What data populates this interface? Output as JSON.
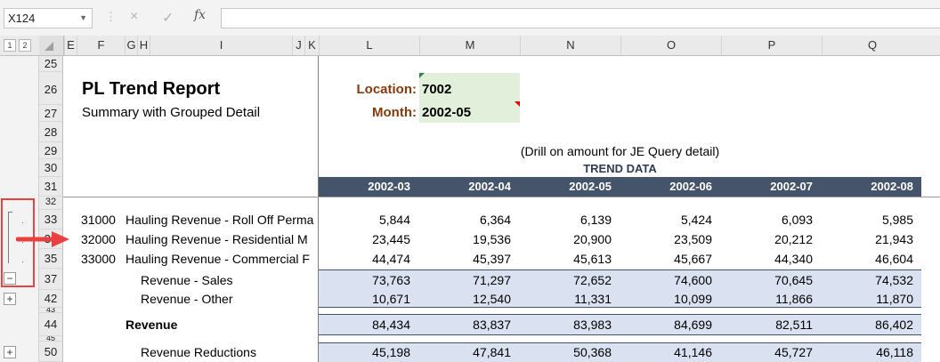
{
  "formula_bar": {
    "name_box": "X124",
    "cancel_icon": "×",
    "enter_icon": "✓",
    "fx_label": "fx",
    "formula": ""
  },
  "outline_levels": [
    "1",
    "2"
  ],
  "columns": [
    "E",
    "F",
    "G",
    "H",
    "I",
    "J",
    "K",
    "L",
    "M",
    "N",
    "O",
    "P",
    "Q"
  ],
  "rows": [
    "25",
    "26",
    "27",
    "28",
    "29",
    "30",
    "31",
    "32",
    "33",
    "34",
    "35",
    "37",
    "42",
    "43",
    "44",
    "45",
    "50"
  ],
  "title": "PL Trend Report",
  "subtitle": "Summary with Grouped Detail",
  "location_label": "Location:",
  "location_value": "7002",
  "month_label": "Month:",
  "month_value": "2002-05",
  "drill_note": "(Drill on amount for JE Query detail)",
  "trend_label": "TREND DATA",
  "periods": [
    "2002-03",
    "2002-04",
    "2002-05",
    "2002-06",
    "2002-07",
    "2002-08"
  ],
  "detail_rows": [
    {
      "code": "31000",
      "name": "Hauling Revenue - Roll Off Perma",
      "values": [
        "5,844",
        "6,364",
        "6,139",
        "5,424",
        "6,093",
        "5,985"
      ]
    },
    {
      "code": "32000",
      "name": "Hauling Revenue - Residential M",
      "values": [
        "23,445",
        "19,536",
        "20,900",
        "23,509",
        "20,212",
        "21,943"
      ]
    },
    {
      "code": "33000",
      "name": "Hauling Revenue - Commercial F",
      "values": [
        "44,474",
        "45,397",
        "45,613",
        "45,667",
        "44,340",
        "46,604"
      ]
    }
  ],
  "summary_rows": [
    {
      "name": "Revenue - Sales",
      "values": [
        "73,763",
        "71,297",
        "72,652",
        "74,600",
        "70,645",
        "74,532"
      ]
    },
    {
      "name": "Revenue - Other",
      "values": [
        "10,671",
        "12,540",
        "11,331",
        "10,099",
        "11,866",
        "11,870"
      ]
    },
    {
      "name": "Revenue",
      "values": [
        "84,434",
        "83,837",
        "83,983",
        "84,699",
        "82,511",
        "86,402"
      ]
    },
    {
      "name": "Revenue Reductions",
      "values": [
        "45,198",
        "47,841",
        "50,368",
        "41,146",
        "45,727",
        "46,118"
      ]
    }
  ],
  "group_buttons": {
    "collapse": "−",
    "expand": "+"
  },
  "colors": {
    "header_navy": "#44546a",
    "section_blue": "#dae1f1",
    "input_green": "#e2efda",
    "label_brown": "#843c0c",
    "highlight_red": "#e84141"
  }
}
